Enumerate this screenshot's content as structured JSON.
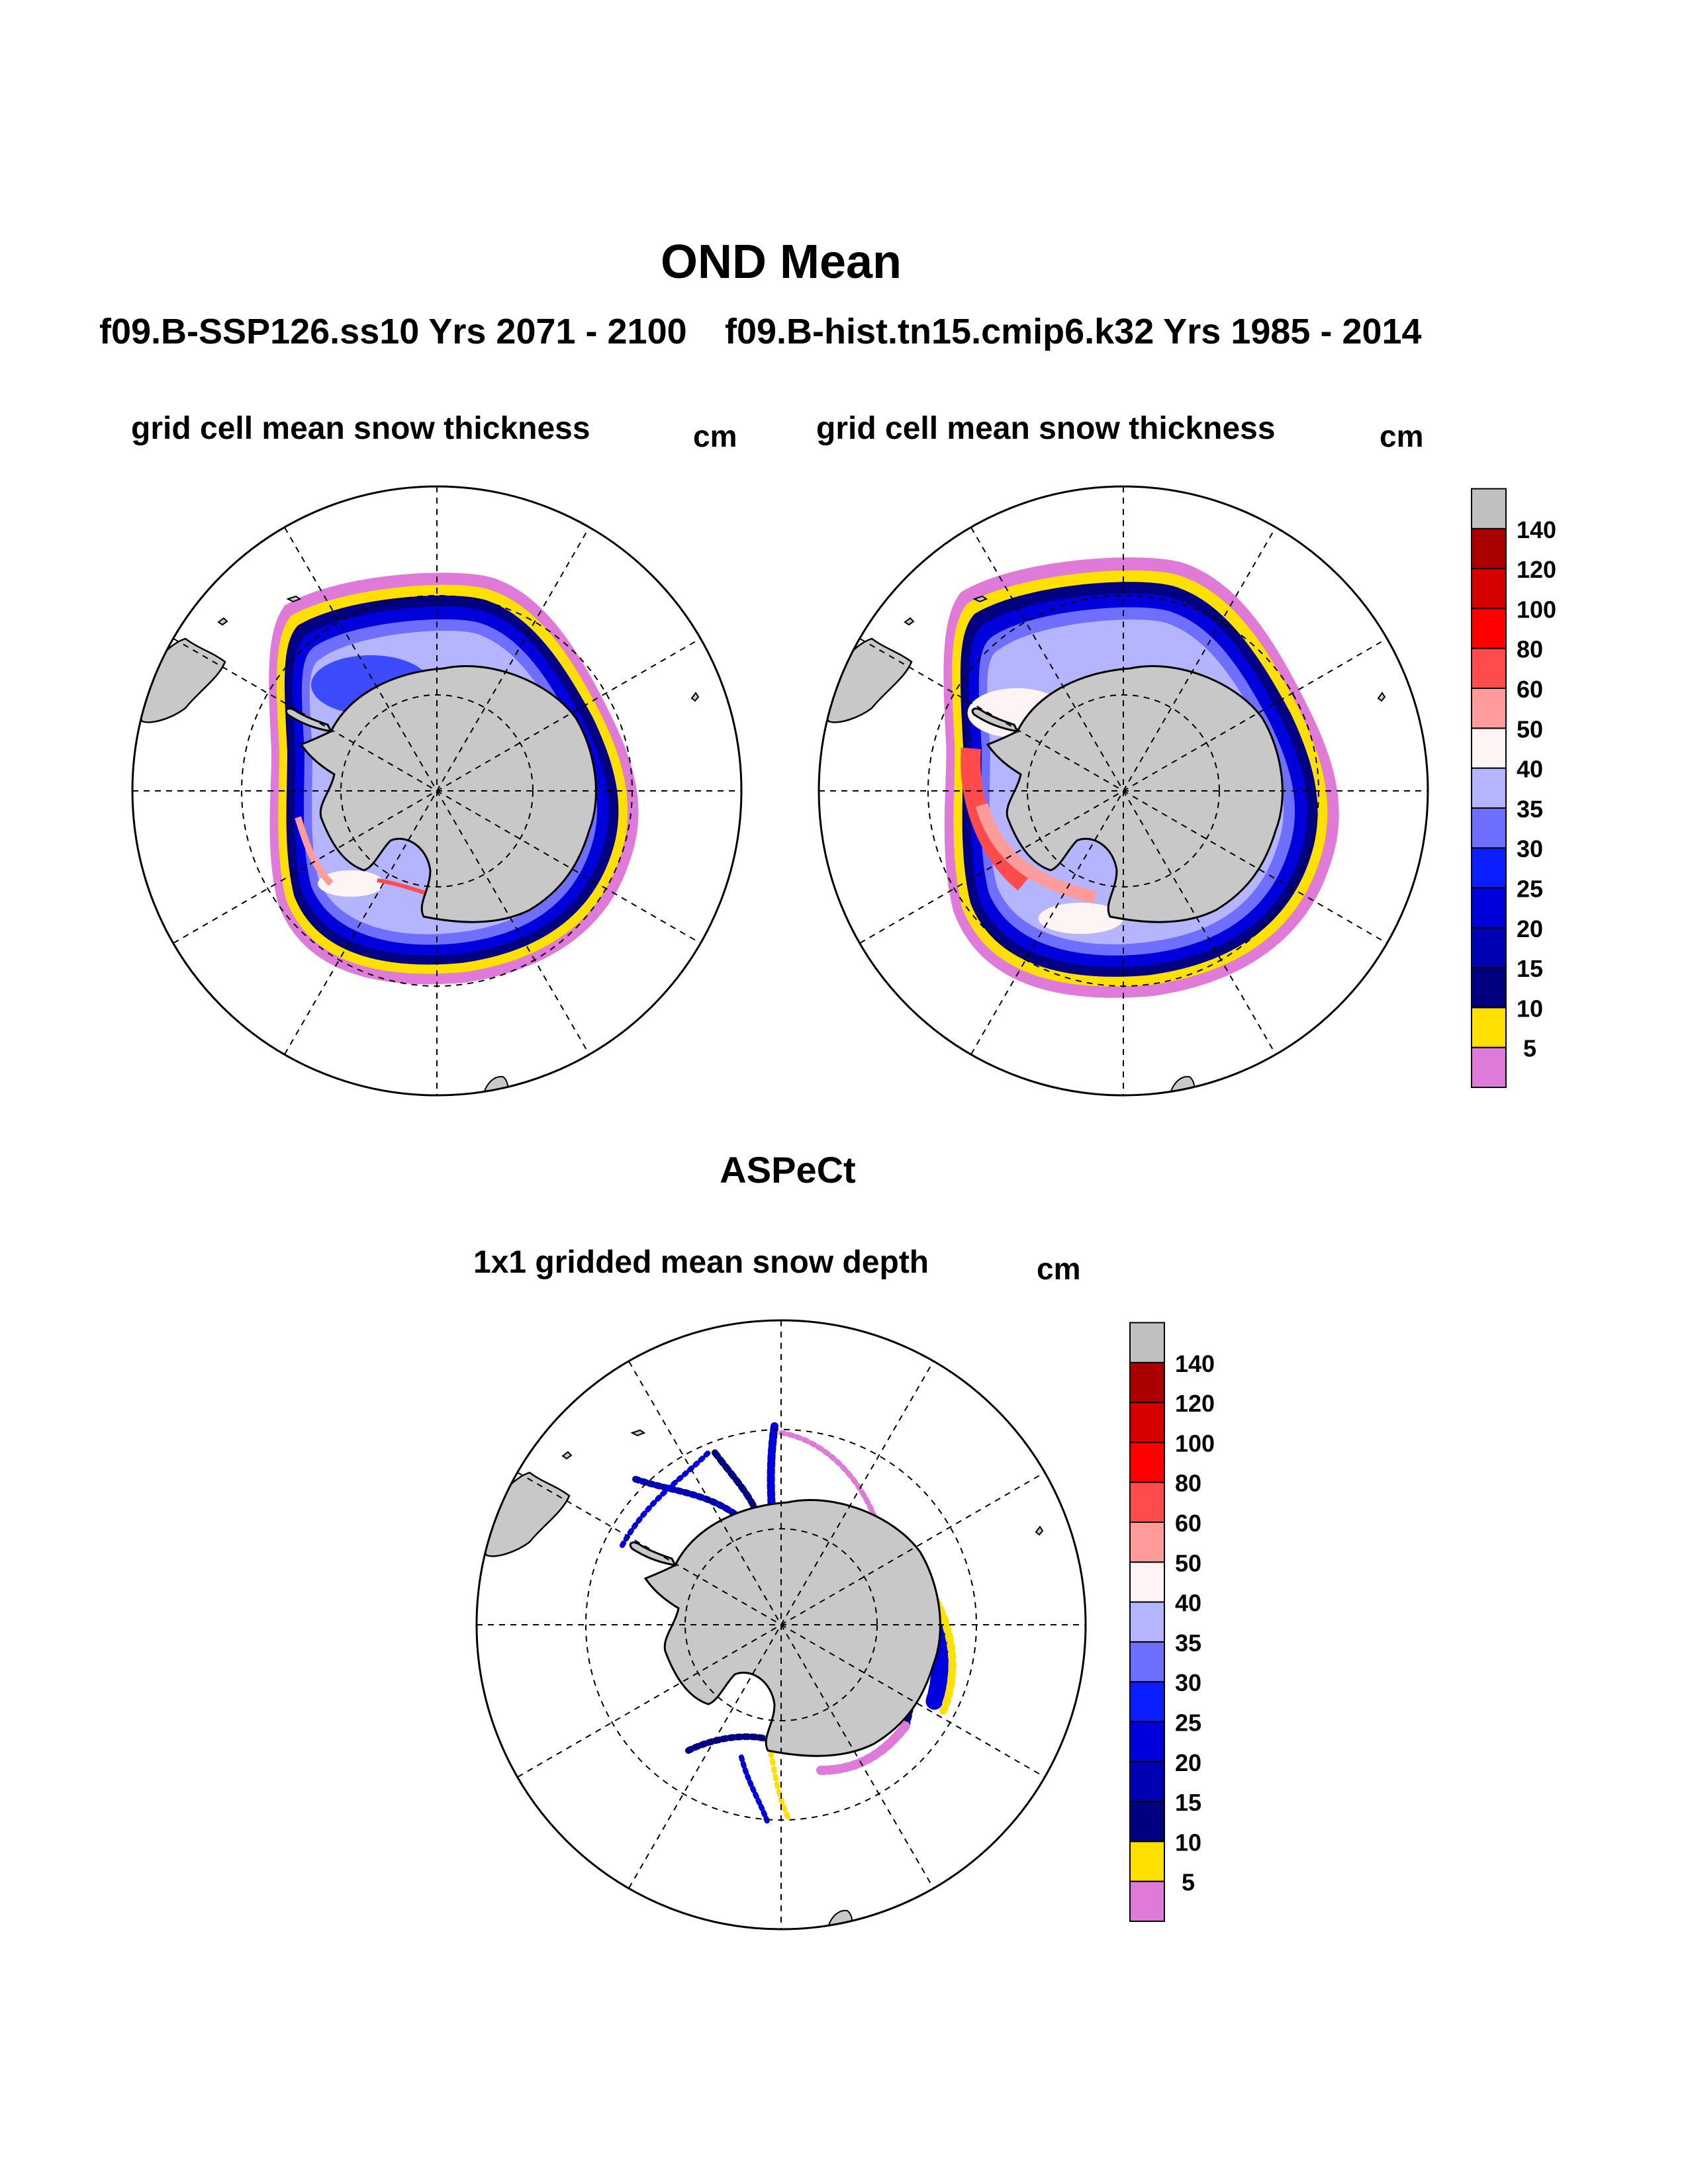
{
  "title": "OND Mean",
  "panels": [
    {
      "id": "model-ssp126",
      "case_title": "f09.B-SSP126.ss10  Yrs 2071 - 2100",
      "variable": "grid cell mean snow thickness",
      "units": "cm"
    },
    {
      "id": "model-hist",
      "case_title": "f09.B-hist.tn15.cmip6.k32  Yrs 1985 - 2014",
      "variable": "grid cell mean snow thickness",
      "units": "cm"
    },
    {
      "id": "obs-aspect",
      "case_title": "ASPeCt",
      "variable": "1x1 gridded mean snow depth",
      "units": "cm"
    }
  ],
  "colorbar": {
    "labels": [
      "5",
      "10",
      "15",
      "20",
      "25",
      "30",
      "35",
      "40",
      "50",
      "60",
      "80",
      "100",
      "120",
      "140"
    ],
    "colors": [
      "#e07ad8",
      "#ffe000",
      "#000080",
      "#0000b4",
      "#0000dc",
      "#0a1eff",
      "#6e6eff",
      "#b4b4ff",
      "#fff4f4",
      "#ff9b9b",
      "#ff4b4b",
      "#ff0000",
      "#d70000",
      "#aa0000",
      "#c0c0c0"
    ]
  },
  "colors": {
    "land": "#c8c8c8",
    "background": "#ffffff"
  }
}
